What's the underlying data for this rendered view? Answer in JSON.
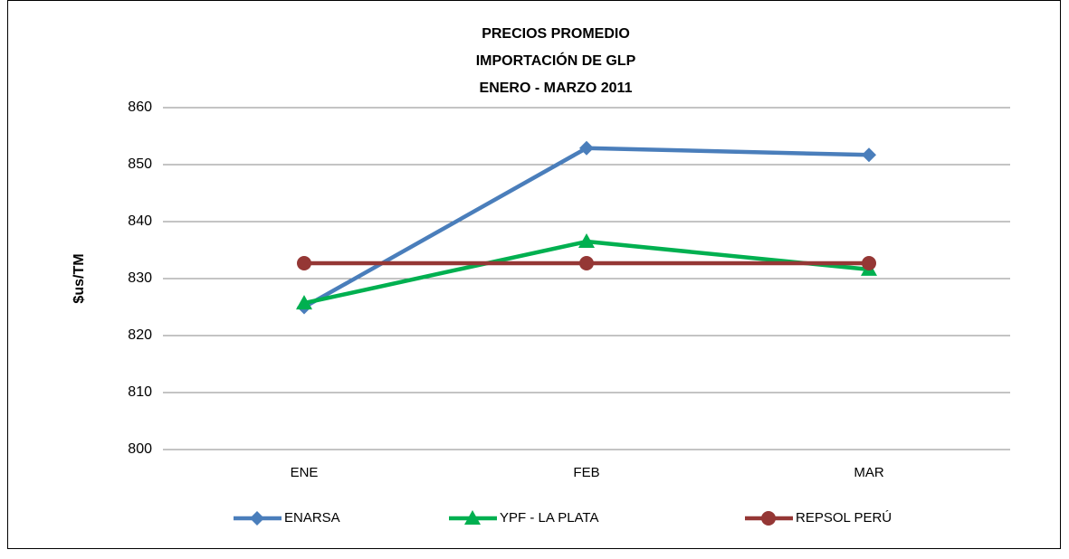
{
  "chart_data": {
    "type": "line",
    "title": [
      "PRECIOS PROMEDIO",
      "IMPORTACIÓN DE GLP",
      "ENERO - MARZO 2011"
    ],
    "y_label": "$us/TM",
    "categories": [
      "ENE",
      "FEB",
      "MAR"
    ],
    "series": [
      {
        "name": "ENARSA",
        "color": "#4a7ebb",
        "marker": "diamond",
        "values": [
          825,
          852.9,
          851.7
        ]
      },
      {
        "name": "YPF - LA PLATA",
        "color": "#00b050",
        "marker": "triangle",
        "values": [
          825.7,
          836.5,
          831.6
        ]
      },
      {
        "name": "REPSOL PERÚ",
        "color": "#953735",
        "marker": "circle",
        "values": [
          832.7,
          832.7,
          832.7
        ]
      }
    ],
    "ylim": [
      800,
      860
    ],
    "yticks": [
      800,
      810,
      820,
      830,
      840,
      850,
      860
    ],
    "grid": true,
    "legend": "bottom"
  }
}
